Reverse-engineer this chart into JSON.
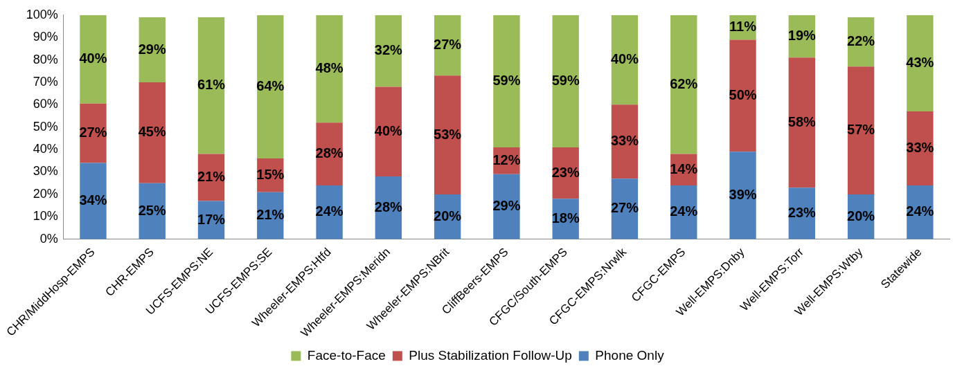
{
  "chart_data": {
    "type": "bar",
    "stacked": true,
    "categories": [
      "CHR/MiddHosp-EMPS",
      "CHR-EMPS",
      "UCFS-EMPS:NE",
      "UCFS-EMPS:SE",
      "Wheeler-EMPS:Htfd",
      "Wheeler-EMPS:Meridn",
      "Wheeler-EMPS:NBrit",
      "CliffBeers-EMPS",
      "CFGC/South-EMPS",
      "CFGC-EMPS:Nrwlk",
      "CFGC-EMPS",
      "Well-EMPS:Dnby",
      "Well-EMPS:Torr",
      "Well-EMPS:Wtby",
      "Statewide"
    ],
    "series": [
      {
        "name": "Phone Only",
        "color": "#4f81bd",
        "values": [
          34,
          25,
          17,
          21,
          24,
          28,
          20,
          29,
          18,
          27,
          24,
          39,
          23,
          20,
          24
        ],
        "value_labels": [
          "34%",
          "25%",
          "17%",
          "21%",
          "24%",
          "28%",
          "20%",
          "29%",
          "18%",
          "27%",
          "24%",
          "39%",
          "23%",
          "20%",
          "24%"
        ]
      },
      {
        "name": "Plus Stabilization Follow-Up",
        "color": "#c0504d",
        "values": [
          26.5,
          45,
          21,
          15,
          28,
          40,
          53,
          12,
          23,
          33,
          14,
          50,
          58,
          57,
          33
        ],
        "value_labels": [
          "27%",
          "45%",
          "21%",
          "15%",
          "28%",
          "40%",
          "53%",
          "12%",
          "23%",
          "33%",
          "14%",
          "50%",
          "58%",
          "57%",
          "33%"
        ]
      },
      {
        "name": "Face-to-Face",
        "color": "#9bbb59",
        "values": [
          39.5,
          29,
          61,
          64,
          48,
          32,
          27,
          59,
          59,
          40,
          62,
          11,
          19,
          22,
          43
        ],
        "value_labels": [
          "40%",
          "29%",
          "61%",
          "64%",
          "48%",
          "32%",
          "27%",
          "59%",
          "59%",
          "40%",
          "62%",
          "11%",
          "19%",
          "22%",
          "43%"
        ]
      }
    ],
    "ylim": [
      0,
      100
    ],
    "yticks": [
      {
        "value": 0,
        "label": "0%"
      },
      {
        "value": 10,
        "label": "10%"
      },
      {
        "value": 20,
        "label": "20%"
      },
      {
        "value": 30,
        "label": "30%"
      },
      {
        "value": 40,
        "label": "40%"
      },
      {
        "value": 50,
        "label": "50%"
      },
      {
        "value": 60,
        "label": "60%"
      },
      {
        "value": 70,
        "label": "70%"
      },
      {
        "value": 80,
        "label": "80%"
      },
      {
        "value": 90,
        "label": "90%"
      },
      {
        "value": 100,
        "label": "100%"
      }
    ],
    "grid": false,
    "legend": "bottom"
  }
}
